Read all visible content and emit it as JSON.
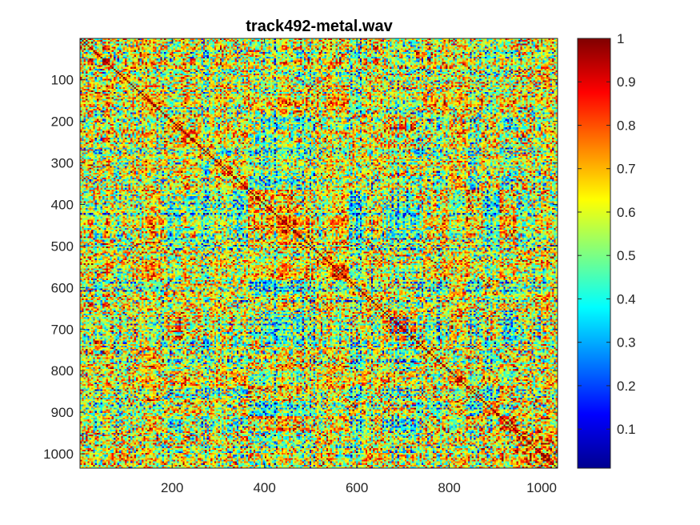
{
  "chart_data": {
    "type": "heatmap",
    "title": "track492-metal.wav",
    "xlabel": "",
    "ylabel": "",
    "xlim": [
      1,
      1034
    ],
    "ylim": [
      1,
      1034
    ],
    "y_reversed": true,
    "x_ticks": [
      200,
      400,
      600,
      800,
      1000
    ],
    "y_ticks": [
      100,
      200,
      300,
      400,
      500,
      600,
      700,
      800,
      900,
      1000
    ],
    "x_tick_labels": [
      "200",
      "400",
      "600",
      "800",
      "1000"
    ],
    "y_tick_labels": [
      "100",
      "200",
      "300",
      "400",
      "500",
      "600",
      "700",
      "800",
      "900",
      "1000"
    ],
    "colormap": "jet",
    "clim": [
      0.01,
      1
    ],
    "colorbar": {
      "position": "right",
      "ticks": [
        0.1,
        0.2,
        0.3,
        0.4,
        0.5,
        0.6,
        0.7,
        0.8,
        0.9,
        1
      ],
      "tick_labels": [
        "0.1",
        "0.2",
        "0.3",
        "0.4",
        "0.5",
        "0.6",
        "0.7",
        "0.8",
        "0.9",
        "1"
      ]
    },
    "matrix": "self-similarity matrix (symmetric, values 0–1, diagonal = 1)"
  }
}
